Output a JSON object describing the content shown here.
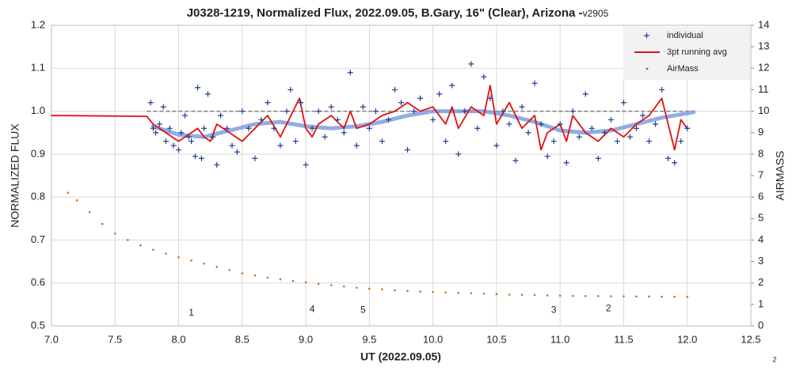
{
  "chart_data": {
    "type": "line",
    "title": "J0328-1219, Normalized Flux, 2022.09.05, B.Gary, 16\" (Clear), Arizona - ",
    "title_version": "v2905",
    "xlabel": "UT (2022.09.05)",
    "ylabel": "NORMALIZED FLUX",
    "y2label": "AIRMASS",
    "page_number": "2",
    "xlim": [
      7.0,
      12.5
    ],
    "xticks": [
      {
        "value": 7,
        "label": "7.0"
      },
      {
        "value": 7.5,
        "label": "7.5"
      },
      {
        "value": 8,
        "label": "8.0"
      },
      {
        "value": 8.5,
        "label": "8.5"
      },
      {
        "value": 9,
        "label": "9.0"
      },
      {
        "value": 9.5,
        "label": "9.5"
      },
      {
        "value": 10,
        "label": "10.0"
      },
      {
        "value": 10.5,
        "label": "10.5"
      },
      {
        "value": 11,
        "label": "11.0"
      },
      {
        "value": 11.5,
        "label": "11.5"
      },
      {
        "value": 12,
        "label": "12.0"
      },
      {
        "value": 12.5,
        "label": "12.5"
      }
    ],
    "ylim": [
      0.5,
      1.2
    ],
    "yticks": [
      {
        "value": 0.5,
        "label": "0.5"
      },
      {
        "value": 0.6,
        "label": "0.6"
      },
      {
        "value": 0.7,
        "label": "0.7"
      },
      {
        "value": 0.8,
        "label": "0.8"
      },
      {
        "value": 0.9,
        "label": "0.9"
      },
      {
        "value": 1.0,
        "label": "1.0"
      },
      {
        "value": 1.1,
        "label": "1.1"
      },
      {
        "value": 1.2,
        "label": "1.2"
      }
    ],
    "y2lim": [
      0,
      14
    ],
    "y2ticks": [
      0,
      1,
      2,
      3,
      4,
      5,
      6,
      7,
      8,
      9,
      10,
      11,
      12,
      13,
      14
    ],
    "grid": true,
    "legend": "upper right",
    "reference_lines": [
      {
        "y": 1.0,
        "x": [
          7.75,
          12.05
        ],
        "color": "#808080"
      }
    ],
    "series": [
      {
        "name": "individual",
        "color": "#1f3f8f",
        "marker": "plus",
        "x": [
          7.78,
          7.8,
          7.82,
          7.85,
          7.88,
          7.9,
          7.93,
          7.96,
          8.0,
          8.02,
          8.05,
          8.08,
          8.1,
          8.13,
          8.15,
          8.18,
          8.2,
          8.23,
          8.27,
          8.3,
          8.33,
          8.38,
          8.42,
          8.46,
          8.5,
          8.55,
          8.6,
          8.65,
          8.7,
          8.75,
          8.8,
          8.85,
          8.88,
          8.92,
          8.96,
          9.0,
          9.05,
          9.1,
          9.15,
          9.2,
          9.25,
          9.3,
          9.35,
          9.4,
          9.45,
          9.5,
          9.55,
          9.6,
          9.65,
          9.7,
          9.75,
          9.8,
          9.85,
          9.9,
          10.0,
          10.05,
          10.1,
          10.15,
          10.2,
          10.25,
          10.3,
          10.35,
          10.4,
          10.45,
          10.5,
          10.55,
          10.6,
          10.65,
          10.7,
          10.75,
          10.8,
          10.85,
          10.9,
          10.95,
          11.0,
          11.05,
          11.1,
          11.15,
          11.2,
          11.25,
          11.3,
          11.35,
          11.4,
          11.45,
          11.5,
          11.55,
          11.6,
          11.65,
          11.7,
          11.75,
          11.8,
          11.85,
          11.9,
          11.95,
          12.0
        ],
        "values": [
          1.02,
          0.96,
          0.95,
          0.97,
          1.01,
          0.93,
          0.96,
          0.92,
          0.91,
          0.95,
          0.99,
          0.94,
          0.93,
          0.895,
          1.055,
          0.89,
          0.96,
          1.04,
          0.94,
          0.875,
          0.99,
          0.96,
          0.92,
          0.905,
          1.0,
          0.96,
          0.89,
          0.98,
          1.02,
          0.96,
          0.92,
          1.0,
          1.05,
          0.93,
          1.02,
          0.875,
          0.96,
          1.0,
          0.94,
          1.01,
          0.98,
          0.95,
          1.09,
          0.92,
          1.01,
          0.96,
          1.0,
          0.93,
          0.98,
          1.05,
          1.02,
          0.91,
          1.0,
          1.03,
          0.98,
          1.04,
          0.93,
          1.06,
          0.9,
          1.0,
          1.11,
          0.96,
          1.08,
          1.03,
          0.92,
          1.0,
          0.97,
          0.885,
          1.01,
          0.95,
          1.065,
          0.97,
          0.895,
          0.93,
          0.97,
          0.88,
          1.0,
          0.94,
          1.04,
          0.96,
          0.89,
          0.95,
          0.98,
          0.93,
          1.02,
          0.94,
          0.96,
          0.99,
          0.93,
          0.97,
          1.05,
          0.89,
          0.88,
          0.93,
          0.96
        ]
      },
      {
        "name": "3pt running avg",
        "color": "#e01010",
        "marker": "line",
        "x": [
          7.0,
          7.75,
          7.8,
          7.9,
          8.0,
          8.1,
          8.15,
          8.2,
          8.25,
          8.3,
          8.4,
          8.5,
          8.6,
          8.7,
          8.8,
          8.9,
          8.95,
          9.0,
          9.05,
          9.1,
          9.2,
          9.3,
          9.35,
          9.4,
          9.5,
          9.6,
          9.7,
          9.8,
          9.9,
          10.0,
          10.1,
          10.15,
          10.2,
          10.3,
          10.4,
          10.45,
          10.5,
          10.6,
          10.7,
          10.8,
          10.85,
          10.9,
          11.0,
          11.05,
          11.1,
          11.2,
          11.3,
          11.4,
          11.5,
          11.6,
          11.7,
          11.8,
          11.85,
          11.9,
          11.95,
          12.0
        ],
        "values": [
          0.99,
          0.988,
          0.97,
          0.95,
          0.93,
          0.95,
          0.96,
          0.94,
          0.93,
          0.97,
          0.95,
          0.93,
          0.96,
          0.99,
          0.94,
          1.0,
          1.03,
          0.96,
          0.94,
          0.97,
          0.99,
          0.96,
          1.0,
          0.96,
          0.97,
          0.99,
          1.0,
          1.02,
          1.0,
          1.01,
          0.97,
          1.01,
          0.96,
          1.01,
          0.99,
          1.06,
          0.97,
          1.02,
          0.96,
          0.99,
          0.91,
          0.95,
          0.97,
          0.93,
          0.99,
          0.95,
          0.93,
          0.96,
          0.94,
          0.97,
          0.99,
          1.03,
          0.97,
          0.91,
          0.98,
          0.96
        ]
      },
      {
        "color": "#7f9fdf",
        "marker": "thick",
        "x": [
          7.8,
          8.0,
          8.2,
          8.4,
          8.6,
          8.8,
          9.0,
          9.2,
          9.4,
          9.6,
          9.8,
          10.0,
          10.2,
          10.4,
          10.6,
          10.8,
          11.0,
          11.2,
          11.4,
          11.6,
          11.8,
          12.0,
          12.05
        ],
        "values": [
          0.965,
          0.945,
          0.94,
          0.955,
          0.97,
          0.975,
          0.965,
          0.96,
          0.965,
          0.975,
          0.99,
          1.0,
          1.0,
          1.0,
          0.99,
          0.975,
          0.955,
          0.95,
          0.955,
          0.97,
          0.985,
          0.995,
          0.998
        ]
      },
      {
        "name": "AirMass",
        "color": "#c87020",
        "marker": "dot",
        "axis": "y2",
        "x": [
          7.13,
          7.2,
          7.3,
          7.4,
          7.5,
          7.6,
          7.7,
          7.8,
          7.9,
          8.0,
          8.1,
          8.2,
          8.3,
          8.4,
          8.5,
          8.6,
          8.7,
          8.8,
          8.9,
          9.0,
          9.1,
          9.2,
          9.3,
          9.4,
          9.5,
          9.6,
          9.7,
          9.8,
          9.9,
          10.0,
          10.1,
          10.2,
          10.3,
          10.4,
          10.5,
          10.6,
          10.7,
          10.8,
          10.9,
          11.0,
          11.1,
          11.2,
          11.3,
          11.4,
          11.5,
          11.6,
          11.7,
          11.8,
          11.9,
          12.0
        ],
        "values": [
          6.2,
          5.85,
          5.3,
          4.75,
          4.3,
          4.0,
          3.75,
          3.55,
          3.37,
          3.2,
          3.05,
          2.9,
          2.75,
          2.6,
          2.45,
          2.35,
          2.25,
          2.17,
          2.09,
          2.03,
          1.96,
          1.9,
          1.84,
          1.78,
          1.73,
          1.7,
          1.66,
          1.63,
          1.6,
          1.58,
          1.56,
          1.54,
          1.52,
          1.5,
          1.48,
          1.46,
          1.45,
          1.44,
          1.42,
          1.41,
          1.4,
          1.39,
          1.39,
          1.38,
          1.38,
          1.37,
          1.37,
          1.36,
          1.36,
          1.36
        ]
      }
    ],
    "annotations": [
      {
        "text": "1",
        "x": 8.1,
        "y": 0.53
      },
      {
        "text": "4",
        "x": 9.05,
        "y": 0.538
      },
      {
        "text": "5",
        "x": 9.45,
        "y": 0.536
      },
      {
        "text": "3",
        "x": 10.95,
        "y": 0.536
      },
      {
        "text": "2",
        "x": 11.38,
        "y": 0.54
      }
    ]
  }
}
